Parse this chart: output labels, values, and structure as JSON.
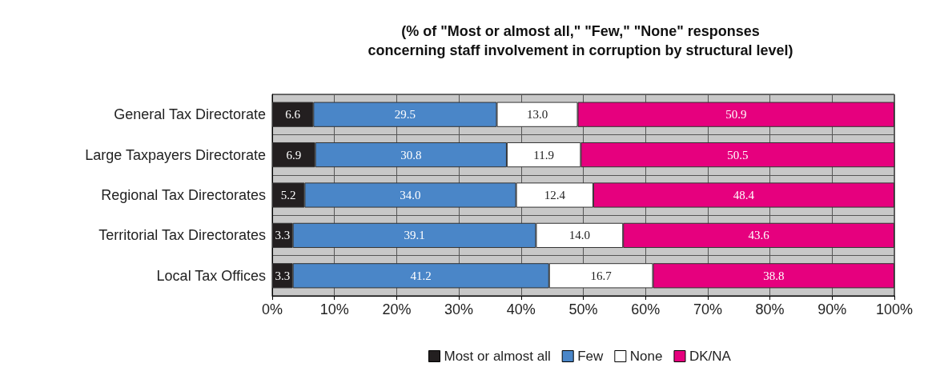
{
  "chart_data": {
    "type": "bar",
    "orientation": "horizontal",
    "stacked": true,
    "title": "(% of \"Most or almost all,\" \"Few,\" \"None\" responses\nconcerning staff involvement in corruption by structural level)",
    "categories": [
      "General Tax Directorate",
      "Large Taxpayers Directorate",
      "Regional Tax Directorates",
      "Territorial Tax Directorates",
      "Local Tax Offices"
    ],
    "series": [
      {
        "name": "Most or almost all",
        "color": "#231f20",
        "values": [
          6.6,
          6.9,
          5.2,
          3.3,
          3.3
        ],
        "value_labels": [
          "6.6",
          "6.9",
          "5.2",
          "3.3",
          "3.3"
        ]
      },
      {
        "name": "Few",
        "color": "#4a86c8",
        "values": [
          29.5,
          30.8,
          34.0,
          39.1,
          41.2
        ],
        "value_labels": [
          "29.5",
          "30.8",
          "34.0",
          "39.1",
          "41.2"
        ]
      },
      {
        "name": "None",
        "color": "#ffffff",
        "values": [
          13.0,
          11.9,
          12.4,
          14.0,
          16.7
        ],
        "value_labels": [
          "13.0",
          "11.9",
          "12.4",
          "14.0",
          "16.7"
        ]
      },
      {
        "name": "DK/NA",
        "color": "#e6007e",
        "values": [
          50.9,
          50.5,
          48.4,
          43.6,
          38.8
        ],
        "value_labels": [
          "50.9",
          "50.5",
          "48.4",
          "43.6",
          "38.8"
        ]
      }
    ],
    "xlim": [
      0,
      100
    ],
    "xticks": [
      {
        "value": 0,
        "label": "0%"
      },
      {
        "value": 10,
        "label": "10%"
      },
      {
        "value": 20,
        "label": "20%"
      },
      {
        "value": 30,
        "label": "30%"
      },
      {
        "value": 40,
        "label": "40%"
      },
      {
        "value": 50,
        "label": "50%"
      },
      {
        "value": 60,
        "label": "60%"
      },
      {
        "value": 70,
        "label": "70%"
      },
      {
        "value": 80,
        "label": "80%"
      },
      {
        "value": 90,
        "label": "90%"
      },
      {
        "value": 100,
        "label": "100%"
      }
    ],
    "grid": true,
    "legend": "bottom"
  }
}
